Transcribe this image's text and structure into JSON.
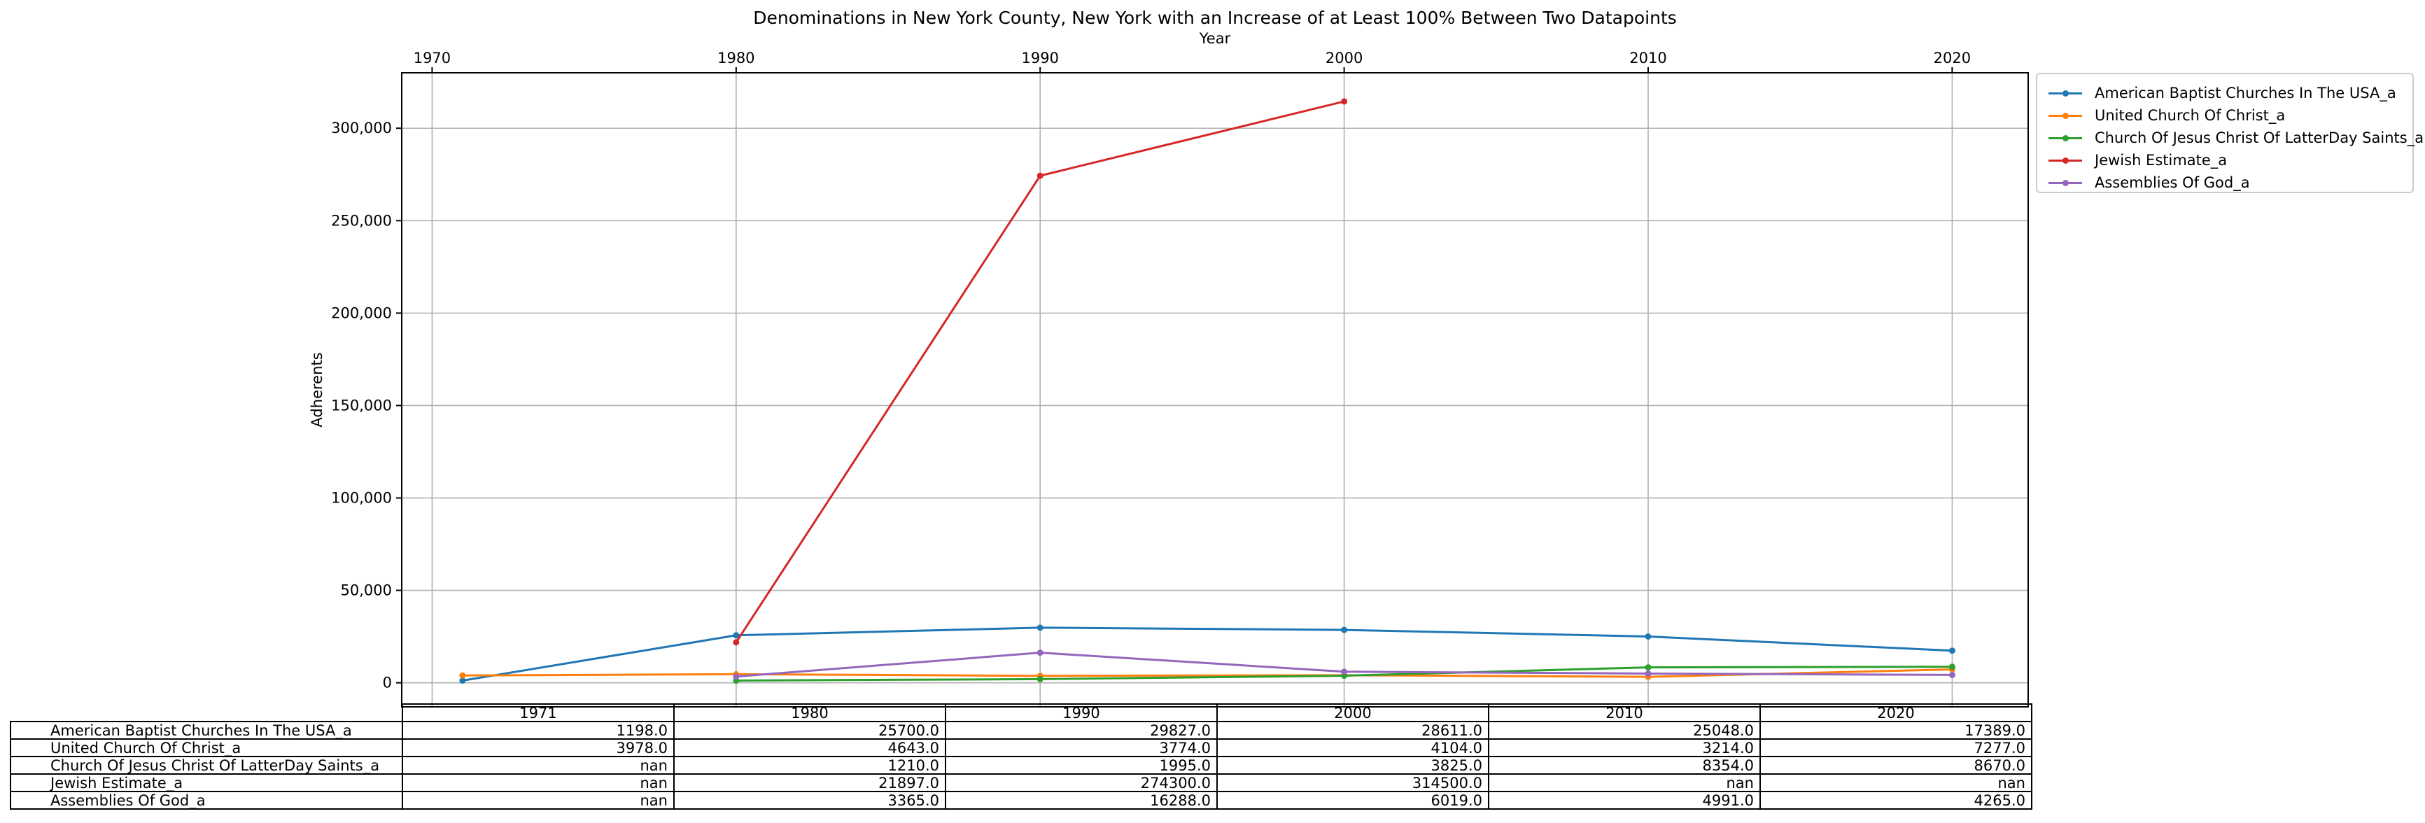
{
  "chart_data": {
    "type": "line",
    "title": "Denominations in New York County, New York with an Increase of at Least 100% Between Two Datapoints",
    "xlabel": "Year",
    "ylabel": "Adherents",
    "x_ticks": [
      1970,
      1980,
      1990,
      2000,
      2010,
      2020
    ],
    "y_ticks": [
      0,
      50000,
      100000,
      150000,
      200000,
      250000,
      300000
    ],
    "y_tick_labels": [
      "0",
      "50,000",
      "100,000",
      "150,000",
      "200,000",
      "250,000",
      "300,000"
    ],
    "xlim": [
      1969,
      2022.5
    ],
    "ylim": [
      -13000,
      330000
    ],
    "grid": true,
    "legend_position": "outside-right-top",
    "x": [
      1971,
      1980,
      1990,
      2000,
      2010,
      2020
    ],
    "series": [
      {
        "name": "American Baptist Churches In The USA_a",
        "color": "#1f77b4",
        "values": [
          1198.0,
          25700.0,
          29827.0,
          28611.0,
          25048.0,
          17389.0
        ]
      },
      {
        "name": "United Church Of Christ_a",
        "color": "#ff7f0e",
        "values": [
          3978.0,
          4643.0,
          3774.0,
          4104.0,
          3214.0,
          7277.0
        ]
      },
      {
        "name": "Church Of Jesus Christ Of LatterDay Saints_a",
        "color": "#2ca02c",
        "values": [
          null,
          1210.0,
          1995.0,
          3825.0,
          8354.0,
          8670.0
        ]
      },
      {
        "name": "Jewish Estimate_a",
        "color": "#d62728",
        "values": [
          null,
          21897.0,
          274300.0,
          314500.0,
          null,
          null
        ]
      },
      {
        "name": "Assemblies Of God_a",
        "color": "#9467bd",
        "values": [
          null,
          3365.0,
          16288.0,
          6019.0,
          4991.0,
          4265.0
        ]
      }
    ],
    "table": {
      "columns": [
        "1971",
        "1980",
        "1990",
        "2000",
        "2010",
        "2020"
      ],
      "rows": [
        {
          "label": "American Baptist Churches In The USA_a",
          "cells": [
            "1198.0",
            "25700.0",
            "29827.0",
            "28611.0",
            "25048.0",
            "17389.0"
          ]
        },
        {
          "label": "United Church Of Christ_a",
          "cells": [
            "3978.0",
            "4643.0",
            "3774.0",
            "4104.0",
            "3214.0",
            "7277.0"
          ]
        },
        {
          "label": "Church Of Jesus Christ Of LatterDay Saints_a",
          "cells": [
            "nan",
            "1210.0",
            "1995.0",
            "3825.0",
            "8354.0",
            "8670.0"
          ]
        },
        {
          "label": "Jewish Estimate_a",
          "cells": [
            "nan",
            "21897.0",
            "274300.0",
            "314500.0",
            "nan",
            "nan"
          ]
        },
        {
          "label": "Assemblies Of God_a",
          "cells": [
            "nan",
            "3365.0",
            "16288.0",
            "6019.0",
            "4991.0",
            "4265.0"
          ]
        }
      ]
    }
  }
}
